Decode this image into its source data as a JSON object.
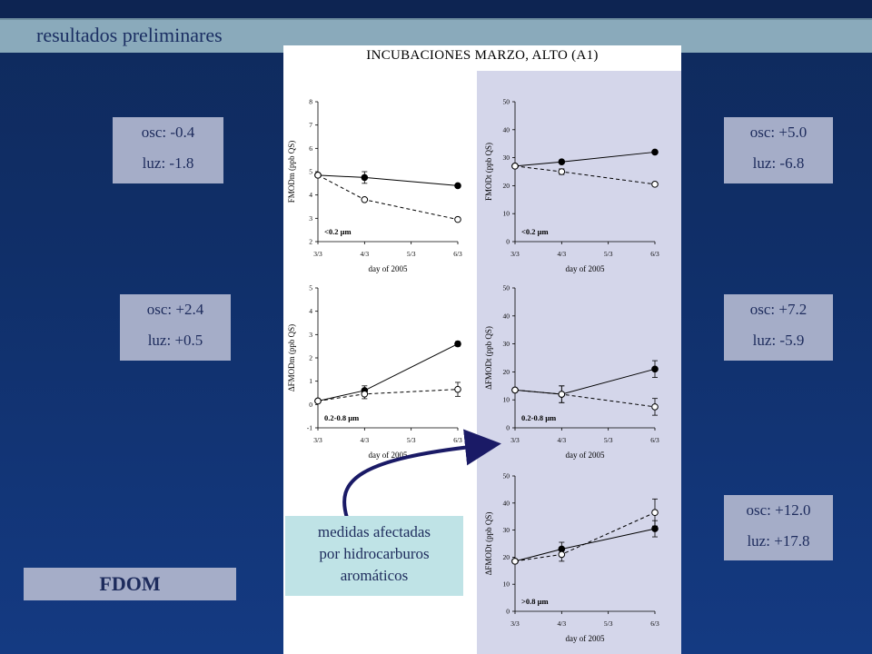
{
  "header": {
    "title": "resultados preliminares"
  },
  "stats": [
    {
      "osc": "osc: -0.4",
      "luz": "luz: -1.8"
    },
    {
      "osc": "osc: +5.0",
      "luz": "luz: -6.8"
    },
    {
      "osc": "osc: +2.4",
      "luz": "luz: +0.5"
    },
    {
      "osc": "osc: +7.2",
      "luz": "luz: -5.9"
    },
    {
      "osc": "osc: +12.0",
      "luz": "luz: +17.8"
    }
  ],
  "fdom_label": "FDOM",
  "note": {
    "line1": "medidas afectadas",
    "line2": "por hidrocarburos",
    "line3": "aromáticos"
  },
  "panel_title": "INCUBACIONES MARZO, ALTO (A1)",
  "colors": {
    "shade": "#d4d6ea",
    "stat_box": "#a5adc8",
    "note_box": "#bfe3e6",
    "arrow": "#1a1a66"
  },
  "chart_data": [
    {
      "type": "line",
      "categories": [
        "3/3",
        "4/3",
        "5/3",
        "6/3"
      ],
      "xlabel": "day of 2005",
      "ylabel": "FMODm (ppb QS)",
      "ylim": [
        2,
        8
      ],
      "yticks": [
        2,
        3,
        4,
        5,
        6,
        7,
        8
      ],
      "annotation": "<0.2 µm",
      "series": [
        {
          "marker": "filled",
          "style": "solid",
          "x": [
            "3/3",
            "4/3",
            "6/3"
          ],
          "values": [
            4.85,
            4.75,
            4.4
          ],
          "err": [
            0,
            0.25,
            0
          ]
        },
        {
          "marker": "open",
          "style": "dashed",
          "x": [
            "3/3",
            "4/3",
            "6/3"
          ],
          "values": [
            4.85,
            3.8,
            2.95
          ],
          "err": [
            0,
            0,
            0
          ]
        }
      ]
    },
    {
      "type": "line",
      "categories": [
        "3/3",
        "4/3",
        "5/3",
        "6/3"
      ],
      "xlabel": "day of 2005",
      "ylabel": "FMODt (ppb QS)",
      "ylim": [
        0,
        50
      ],
      "yticks": [
        0,
        10,
        20,
        30,
        40,
        50
      ],
      "annotation": "<0.2 µm",
      "series": [
        {
          "marker": "filled",
          "style": "solid",
          "x": [
            "3/3",
            "4/3",
            "6/3"
          ],
          "values": [
            27,
            28.5,
            32
          ],
          "err": [
            0,
            0,
            0
          ]
        },
        {
          "marker": "open",
          "style": "dashed",
          "x": [
            "3/3",
            "4/3",
            "6/3"
          ],
          "values": [
            27,
            25,
            20.5
          ],
          "err": [
            0,
            1,
            0
          ]
        }
      ]
    },
    {
      "type": "line",
      "categories": [
        "3/3",
        "4/3",
        "5/3",
        "6/3"
      ],
      "xlabel": "day of 2005",
      "ylabel": "ΔFMODm (ppb QS)",
      "ylim": [
        -1,
        5
      ],
      "yticks": [
        -1,
        0,
        1,
        2,
        3,
        4,
        5
      ],
      "annotation": "0.2-0.8 µm",
      "series": [
        {
          "marker": "filled",
          "style": "solid",
          "x": [
            "3/3",
            "4/3",
            "6/3"
          ],
          "values": [
            0.15,
            0.6,
            2.6
          ],
          "err": [
            0,
            0.2,
            0.1
          ]
        },
        {
          "marker": "open",
          "style": "dashed",
          "x": [
            "3/3",
            "4/3",
            "6/3"
          ],
          "values": [
            0.15,
            0.45,
            0.65
          ],
          "err": [
            0,
            0.2,
            0.3
          ]
        }
      ]
    },
    {
      "type": "line",
      "categories": [
        "3/3",
        "4/3",
        "5/3",
        "6/3"
      ],
      "xlabel": "day of 2005",
      "ylabel": "ΔFMODt (ppb QS)",
      "ylim": [
        0,
        50
      ],
      "yticks": [
        0,
        10,
        20,
        30,
        40,
        50
      ],
      "annotation": "0.2-0.8 µm",
      "series": [
        {
          "marker": "filled",
          "style": "solid",
          "x": [
            "3/3",
            "4/3",
            "6/3"
          ],
          "values": [
            13.5,
            12,
            21
          ],
          "err": [
            0,
            3,
            3
          ]
        },
        {
          "marker": "open",
          "style": "dashed",
          "x": [
            "3/3",
            "4/3",
            "6/3"
          ],
          "values": [
            13.5,
            12,
            7.5
          ],
          "err": [
            0,
            3,
            3
          ]
        }
      ]
    },
    {
      "type": "line",
      "categories": [
        "3/3",
        "4/3",
        "5/3",
        "6/3"
      ],
      "xlabel": "day of 2005",
      "ylabel": "ΔFMODt (ppb QS)",
      "ylim": [
        0,
        50
      ],
      "yticks": [
        0,
        10,
        20,
        30,
        40,
        50
      ],
      "annotation": ">0.8 µm",
      "series": [
        {
          "marker": "filled",
          "style": "solid",
          "x": [
            "3/3",
            "4/3",
            "6/3"
          ],
          "values": [
            18.5,
            23,
            30.5
          ],
          "err": [
            0,
            2.5,
            3
          ]
        },
        {
          "marker": "open",
          "style": "dashed",
          "x": [
            "3/3",
            "4/3",
            "6/3"
          ],
          "values": [
            18.5,
            21,
            36.5
          ],
          "err": [
            0,
            2.5,
            5
          ]
        }
      ]
    }
  ]
}
